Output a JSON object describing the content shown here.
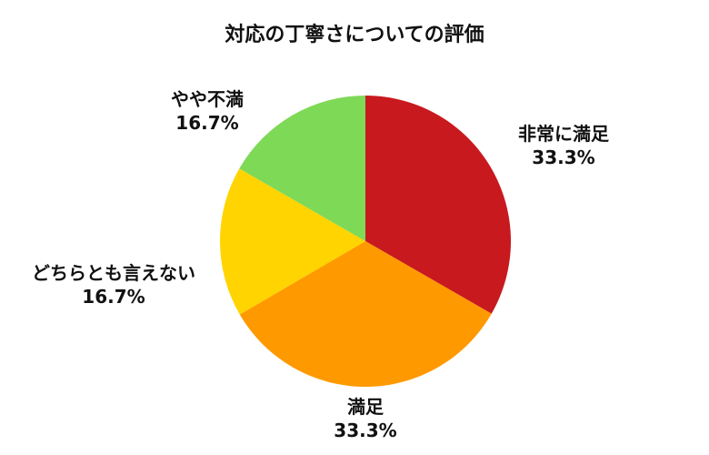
{
  "chart_data": {
    "type": "pie",
    "title": "対応の丁寧さについての評価",
    "categories": [
      "非常に満足",
      "満足",
      "どちらとも言えない",
      "やや不満"
    ],
    "values": [
      33.3,
      33.3,
      16.7,
      16.7
    ],
    "value_labels": [
      "33.3%",
      "33.3%",
      "16.7%",
      "16.7%"
    ],
    "colors": [
      "#C8191F",
      "#FF9900",
      "#FFD400",
      "#7ED957"
    ],
    "start_angle": "12 o'clock",
    "direction": "clockwise",
    "legend": "none"
  }
}
